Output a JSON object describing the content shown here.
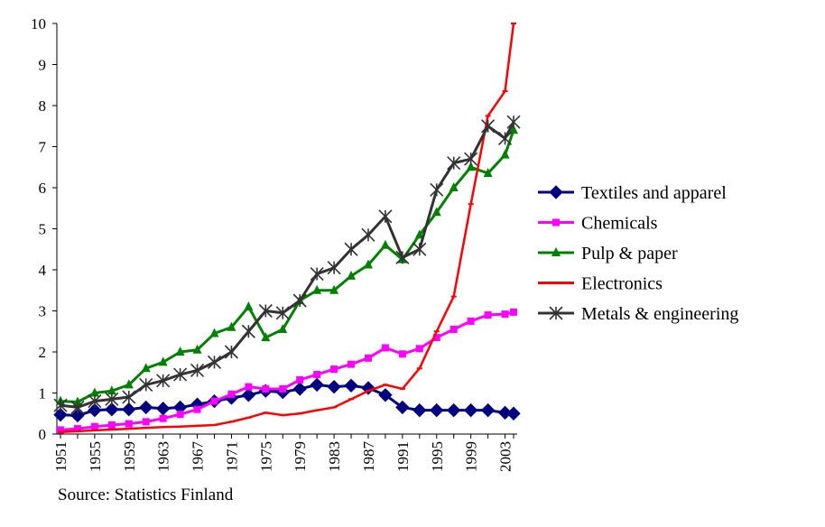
{
  "source_note": "Source: Statistics Finland",
  "chart_data": {
    "type": "line",
    "title": "",
    "xlabel": "",
    "ylabel": "",
    "ylim": [
      0,
      10
    ],
    "yticks": [
      0,
      1,
      2,
      3,
      4,
      5,
      6,
      7,
      8,
      9,
      10
    ],
    "xlim": [
      1951,
      2004
    ],
    "xticks": [
      1951,
      1955,
      1959,
      1963,
      1967,
      1971,
      1975,
      1979,
      1983,
      1987,
      1991,
      1995,
      1999,
      2003
    ],
    "grid": false,
    "legend_position": "right",
    "x": [
      1951,
      1953,
      1955,
      1957,
      1959,
      1961,
      1963,
      1965,
      1967,
      1969,
      1971,
      1973,
      1975,
      1977,
      1979,
      1981,
      1983,
      1985,
      1987,
      1989,
      1991,
      1993,
      1995,
      1997,
      1999,
      2001,
      2003,
      2004
    ],
    "series": [
      {
        "name": "Textiles and apparel",
        "color": "#000080",
        "marker": "diamond",
        "values": [
          0.47,
          0.45,
          0.58,
          0.6,
          0.6,
          0.65,
          0.62,
          0.65,
          0.72,
          0.8,
          0.88,
          0.95,
          1.05,
          1.02,
          1.1,
          1.2,
          1.15,
          1.18,
          1.12,
          0.95,
          0.65,
          0.58,
          0.58,
          0.58,
          0.58,
          0.58,
          0.52,
          0.5
        ]
      },
      {
        "name": "Chemicals",
        "color": "#ff00ff",
        "marker": "square",
        "values": [
          0.1,
          0.13,
          0.18,
          0.22,
          0.25,
          0.3,
          0.38,
          0.48,
          0.6,
          0.8,
          0.97,
          1.15,
          1.1,
          1.1,
          1.32,
          1.45,
          1.58,
          1.7,
          1.85,
          2.1,
          1.95,
          2.08,
          2.35,
          2.55,
          2.75,
          2.9,
          2.92,
          2.97
        ]
      },
      {
        "name": "Pulp & paper",
        "color": "#008000",
        "marker": "triangle",
        "values": [
          0.8,
          0.78,
          1.0,
          1.05,
          1.2,
          1.6,
          1.75,
          2.0,
          2.05,
          2.45,
          2.6,
          3.1,
          2.35,
          2.55,
          3.25,
          3.5,
          3.5,
          3.85,
          4.12,
          4.6,
          4.25,
          4.85,
          5.4,
          6.0,
          6.5,
          6.35,
          6.8,
          7.4
        ]
      },
      {
        "name": "Electronics",
        "color": "#ff0000",
        "marker": "dash",
        "values": [
          0.05,
          0.07,
          0.09,
          0.11,
          0.13,
          0.15,
          0.17,
          0.18,
          0.2,
          0.22,
          0.3,
          0.4,
          0.52,
          0.46,
          0.5,
          0.58,
          0.65,
          0.85,
          1.05,
          1.2,
          1.1,
          1.6,
          2.5,
          3.35,
          5.6,
          7.75,
          8.35,
          10.0
        ]
      },
      {
        "name": "Metals & engineering",
        "color": "#333333",
        "marker": "star",
        "values": [
          0.7,
          0.65,
          0.8,
          0.85,
          0.9,
          1.2,
          1.3,
          1.45,
          1.55,
          1.75,
          2.0,
          2.5,
          3.0,
          2.95,
          3.25,
          3.9,
          4.05,
          4.5,
          4.85,
          5.3,
          4.3,
          4.5,
          5.95,
          6.6,
          6.7,
          7.5,
          7.2,
          7.6
        ]
      }
    ]
  }
}
